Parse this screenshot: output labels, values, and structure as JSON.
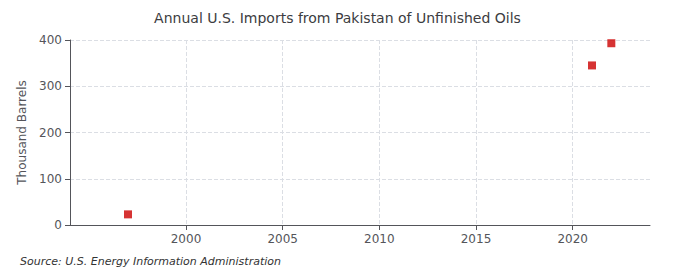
{
  "chart_data": {
    "type": "scatter",
    "title": "Annual U.S. Imports from Pakistan of Unfinished Oils",
    "ylabel": "Thousand Barrels",
    "annotation": "Source: U.S. Energy Information Administration",
    "x": [
      1997,
      2021,
      2022
    ],
    "values": [
      23,
      345,
      393
    ],
    "color": "#cc0000",
    "marker": "square",
    "xlim": [
      1994,
      2024
    ],
    "xticks": [
      2000,
      2005,
      2010,
      2015,
      2020
    ],
    "ylim": [
      0,
      400
    ],
    "yticks": [
      0,
      100,
      200,
      300,
      400
    ],
    "grid": true
  }
}
